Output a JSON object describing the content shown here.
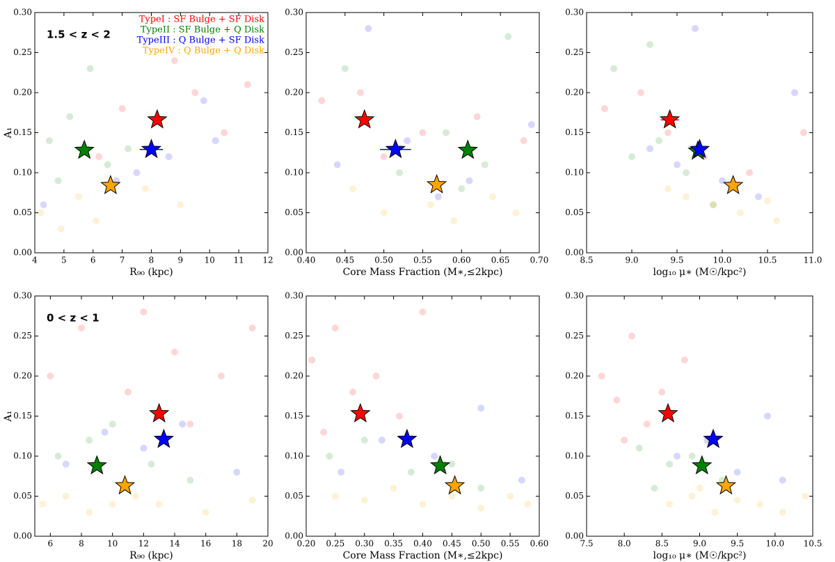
{
  "chart_data": [
    {
      "type": "scatter",
      "xlabel": "R₉₀ (kpc)",
      "ylabel": "A₁",
      "annotation": "1.5 < z < 2",
      "legend": "upper right",
      "xlim": [
        4,
        12
      ],
      "xticks": [
        4,
        5,
        6,
        7,
        8,
        9,
        10,
        11,
        12
      ],
      "ylim": [
        0,
        0.3
      ],
      "yticks": [
        {
          "value": 0,
          "label": "0.00"
        },
        0.05,
        {
          "value": 0.1,
          "label": "0.10"
        },
        0.15,
        {
          "value": 0.2,
          "label": "0.20"
        },
        0.25,
        {
          "value": 0.3,
          "label": "0.30"
        }
      ],
      "series": [
        {
          "name": "TypeI : SF Bulge + SF Disk",
          "color": "#ff0000",
          "x": [
            8.2
          ],
          "values": [
            0.166
          ],
          "sample_x": [
            7,
            9.5,
            10.5,
            6.2,
            11.3,
            8.8
          ],
          "sample_y": [
            0.18,
            0.2,
            0.15,
            0.12,
            0.21,
            0.24
          ]
        },
        {
          "name": "TypeII : SF Bulge + Q Disk",
          "color": "#008000",
          "x": [
            5.7
          ],
          "values": [
            0.128
          ],
          "sample_x": [
            4.5,
            5.2,
            6.5,
            4.8,
            7.2,
            5.9
          ],
          "sample_y": [
            0.14,
            0.17,
            0.11,
            0.09,
            0.13,
            0.23
          ]
        },
        {
          "name": "TypeIII : Q Bulge + SF Disk",
          "color": "#0000ff",
          "x": [
            8.0
          ],
          "values": [
            0.129
          ],
          "xerr": [
            0.4
          ],
          "sample_x": [
            7.5,
            8.6,
            9.8,
            4.3,
            6.8,
            10.2
          ],
          "sample_y": [
            0.1,
            0.12,
            0.19,
            0.06,
            0.09,
            0.14
          ]
        },
        {
          "name": "TypeIV : Q Bulge + Q Disk",
          "color": "#ffa500",
          "x": [
            6.6
          ],
          "values": [
            0.084
          ],
          "sample_x": [
            4.2,
            5.5,
            6.1,
            7.8,
            4.9,
            9.0
          ],
          "sample_y": [
            0.05,
            0.07,
            0.04,
            0.08,
            0.03,
            0.06
          ]
        }
      ]
    },
    {
      "type": "scatter",
      "xlabel": "Core Mass Fraction (M∗,≤2kpc)",
      "xlim": [
        0.4,
        0.7
      ],
      "xticks": [
        {
          "value": 0.4,
          "label": "0.40"
        },
        0.45,
        {
          "value": 0.5,
          "label": "0.50"
        },
        0.55,
        {
          "value": 0.6,
          "label": "0.60"
        },
        0.65,
        {
          "value": 0.7,
          "label": "0.70"
        }
      ],
      "ylim": [
        0,
        0.3
      ],
      "yticks": [
        {
          "value": 0,
          "label": "0.00"
        },
        0.05,
        {
          "value": 0.1,
          "label": "0.10"
        },
        0.15,
        {
          "value": 0.2,
          "label": "0.20"
        },
        0.25,
        {
          "value": 0.3,
          "label": "0.30"
        }
      ],
      "series": [
        {
          "color": "#ff0000",
          "x": [
            0.475
          ],
          "values": [
            0.166
          ],
          "sample_x": [
            0.42,
            0.47,
            0.55,
            0.62,
            0.68,
            0.5
          ],
          "sample_y": [
            0.19,
            0.2,
            0.15,
            0.17,
            0.14,
            0.12
          ]
        },
        {
          "color": "#008000",
          "x": [
            0.608
          ],
          "values": [
            0.128
          ],
          "sample_x": [
            0.45,
            0.58,
            0.63,
            0.66,
            0.52,
            0.6
          ],
          "sample_y": [
            0.23,
            0.15,
            0.11,
            0.27,
            0.1,
            0.08
          ]
        },
        {
          "color": "#0000ff",
          "x": [
            0.515
          ],
          "values": [
            0.129
          ],
          "xerr": [
            0.02
          ],
          "sample_x": [
            0.48,
            0.53,
            0.61,
            0.69,
            0.57,
            0.44
          ],
          "sample_y": [
            0.28,
            0.14,
            0.09,
            0.16,
            0.07,
            0.11
          ]
        },
        {
          "color": "#ffa500",
          "x": [
            0.568
          ],
          "values": [
            0.085
          ],
          "sample_x": [
            0.5,
            0.56,
            0.59,
            0.64,
            0.67,
            0.46
          ],
          "sample_y": [
            0.05,
            0.06,
            0.04,
            0.07,
            0.05,
            0.08
          ]
        }
      ]
    },
    {
      "type": "scatter",
      "xlabel": "log₁₀ μ∗ (M☉/kpc²)",
      "xlim": [
        8.5,
        11
      ],
      "xticks": [
        8.5,
        {
          "value": 9,
          "label": "9.0"
        },
        9.5,
        {
          "value": 10,
          "label": "10.0"
        },
        10.5,
        {
          "value": 11,
          "label": "11.0"
        }
      ],
      "ylim": [
        0,
        0.3
      ],
      "yticks": [
        {
          "value": 0,
          "label": "0.00"
        },
        0.05,
        {
          "value": 0.1,
          "label": "0.10"
        },
        0.15,
        {
          "value": 0.2,
          "label": "0.20"
        },
        0.25,
        {
          "value": 0.3,
          "label": "0.30"
        }
      ],
      "series": [
        {
          "color": "#ff0000",
          "x": [
            9.42
          ],
          "values": [
            0.166
          ],
          "xerr": [
            0.1
          ],
          "sample_x": [
            8.7,
            9.1,
            9.4,
            9.8,
            10.3,
            10.9
          ],
          "sample_y": [
            0.18,
            0.2,
            0.15,
            0.12,
            0.1,
            0.15
          ]
        },
        {
          "color": "#008000",
          "x": [
            9.73
          ],
          "values": [
            0.127
          ],
          "sample_x": [
            8.8,
            9.0,
            9.3,
            9.6,
            9.9,
            9.2
          ],
          "sample_y": [
            0.23,
            0.12,
            0.14,
            0.1,
            0.06,
            0.26
          ]
        },
        {
          "color": "#0000ff",
          "x": [
            9.75
          ],
          "values": [
            0.129
          ],
          "sample_x": [
            9.2,
            9.7,
            10.0,
            10.4,
            10.8,
            9.5
          ],
          "sample_y": [
            0.13,
            0.28,
            0.09,
            0.07,
            0.2,
            0.11
          ]
        },
        {
          "color": "#ffa500",
          "x": [
            10.12
          ],
          "values": [
            0.084
          ],
          "sample_x": [
            9.6,
            9.9,
            10.2,
            10.5,
            10.6,
            9.4
          ],
          "sample_y": [
            0.07,
            0.06,
            0.05,
            0.065,
            0.04,
            0.08
          ]
        }
      ]
    },
    {
      "type": "scatter",
      "xlabel": "R₉₀ (kpc)",
      "ylabel": "A₁",
      "annotation": "0 < z < 1",
      "xlim": [
        5,
        20
      ],
      "xticks": [
        6,
        8,
        10,
        12,
        14,
        16,
        18,
        20
      ],
      "ylim": [
        0,
        0.3
      ],
      "yticks": [
        {
          "value": 0,
          "label": "0.00"
        },
        0.05,
        {
          "value": 0.1,
          "label": "0.10"
        },
        0.15,
        {
          "value": 0.2,
          "label": "0.20"
        },
        0.25,
        {
          "value": 0.3,
          "label": "0.30"
        }
      ],
      "series": [
        {
          "color": "#ff0000",
          "x": [
            13.0
          ],
          "values": [
            0.153
          ],
          "sample_x": [
            6,
            8,
            11,
            14,
            17,
            19,
            12,
            15
          ],
          "sample_y": [
            0.2,
            0.26,
            0.18,
            0.23,
            0.2,
            0.26,
            0.28,
            0.14
          ]
        },
        {
          "color": "#0000ff",
          "x": [
            13.3
          ],
          "values": [
            0.121
          ],
          "sample_x": [
            7,
            9.5,
            12,
            14.5,
            18
          ],
          "sample_y": [
            0.09,
            0.13,
            0.11,
            0.14,
            0.08
          ]
        },
        {
          "color": "#008000",
          "x": [
            9.0
          ],
          "values": [
            0.088
          ],
          "sample_x": [
            6.5,
            8.5,
            10,
            12.5,
            15
          ],
          "sample_y": [
            0.1,
            0.12,
            0.14,
            0.09,
            0.07
          ]
        },
        {
          "color": "#ffa500",
          "x": [
            10.8
          ],
          "values": [
            0.063
          ],
          "sample_x": [
            5.5,
            7,
            8.5,
            10,
            11.5,
            13,
            16,
            19
          ],
          "sample_y": [
            0.04,
            0.05,
            0.03,
            0.04,
            0.05,
            0.04,
            0.03,
            0.045
          ]
        }
      ]
    },
    {
      "type": "scatter",
      "xlabel": "Core Mass Fraction (M∗,≤2kpc)",
      "xlim": [
        0.2,
        0.6
      ],
      "xticks": [
        {
          "value": 0.2,
          "label": "0.20"
        },
        0.25,
        {
          "value": 0.3,
          "label": "0.30"
        },
        0.35,
        {
          "value": 0.4,
          "label": "0.40"
        },
        0.45,
        {
          "value": 0.5,
          "label": "0.50"
        },
        0.55,
        {
          "value": 0.6,
          "label": "0.60"
        }
      ],
      "ylim": [
        0,
        0.3
      ],
      "yticks": [
        {
          "value": 0,
          "label": "0.00"
        },
        0.05,
        {
          "value": 0.1,
          "label": "0.10"
        },
        0.15,
        {
          "value": 0.2,
          "label": "0.20"
        },
        0.25,
        {
          "value": 0.3,
          "label": "0.30"
        }
      ],
      "series": [
        {
          "color": "#ff0000",
          "x": [
            0.293
          ],
          "values": [
            0.153
          ],
          "sample_x": [
            0.21,
            0.25,
            0.28,
            0.32,
            0.36,
            0.23,
            0.4
          ],
          "sample_y": [
            0.22,
            0.26,
            0.18,
            0.2,
            0.15,
            0.13,
            0.28
          ]
        },
        {
          "color": "#0000ff",
          "x": [
            0.373
          ],
          "values": [
            0.121
          ],
          "sample_x": [
            0.26,
            0.33,
            0.42,
            0.5,
            0.57
          ],
          "sample_y": [
            0.08,
            0.12,
            0.1,
            0.16,
            0.07
          ]
        },
        {
          "color": "#008000",
          "x": [
            0.43
          ],
          "values": [
            0.088
          ],
          "sample_x": [
            0.24,
            0.3,
            0.38,
            0.45,
            0.5
          ],
          "sample_y": [
            0.1,
            0.12,
            0.08,
            0.09,
            0.06
          ]
        },
        {
          "color": "#ffa500",
          "x": [
            0.455
          ],
          "values": [
            0.063
          ],
          "sample_x": [
            0.25,
            0.3,
            0.35,
            0.4,
            0.45,
            0.5,
            0.55,
            0.58
          ],
          "sample_y": [
            0.05,
            0.045,
            0.06,
            0.04,
            0.05,
            0.035,
            0.05,
            0.04
          ]
        }
      ]
    },
    {
      "type": "scatter",
      "xlabel": "log₁₀ μ∗ (M☉/kpc²)",
      "xlim": [
        7.5,
        10.5
      ],
      "xticks": [
        7.5,
        {
          "value": 8,
          "label": "8.0"
        },
        8.5,
        {
          "value": 9,
          "label": "9.0"
        },
        9.5,
        {
          "value": 10,
          "label": "10.0"
        },
        10.5
      ],
      "ylim": [
        0,
        0.3
      ],
      "yticks": [
        {
          "value": 0,
          "label": "0.00"
        },
        0.05,
        {
          "value": 0.1,
          "label": "0.10"
        },
        0.15,
        {
          "value": 0.2,
          "label": "0.20"
        },
        0.25,
        {
          "value": 0.3,
          "label": "0.30"
        }
      ],
      "series": [
        {
          "color": "#ff0000",
          "x": [
            8.58
          ],
          "values": [
            0.153
          ],
          "sample_x": [
            7.7,
            7.9,
            8.1,
            8.3,
            8.5,
            8.0,
            8.8
          ],
          "sample_y": [
            0.2,
            0.17,
            0.25,
            0.14,
            0.18,
            0.12,
            0.22
          ]
        },
        {
          "color": "#0000ff",
          "x": [
            9.18
          ],
          "values": [
            0.121
          ],
          "sample_x": [
            8.7,
            9.1,
            9.5,
            9.9,
            10.1
          ],
          "sample_y": [
            0.1,
            0.12,
            0.08,
            0.15,
            0.07
          ]
        },
        {
          "color": "#008000",
          "x": [
            9.03
          ],
          "values": [
            0.088
          ],
          "sample_x": [
            8.2,
            8.6,
            8.9,
            9.3,
            8.4
          ],
          "sample_y": [
            0.11,
            0.09,
            0.1,
            0.07,
            0.06
          ]
        },
        {
          "color": "#ffa500",
          "x": [
            9.35
          ],
          "values": [
            0.063
          ],
          "sample_x": [
            8.6,
            8.9,
            9.2,
            9.5,
            9.8,
            10.1,
            10.4,
            9.0
          ],
          "sample_y": [
            0.04,
            0.05,
            0.03,
            0.045,
            0.04,
            0.03,
            0.05,
            0.06
          ]
        }
      ]
    }
  ]
}
